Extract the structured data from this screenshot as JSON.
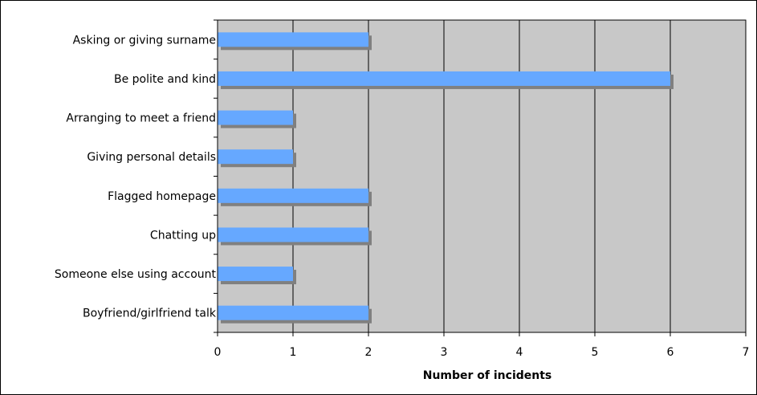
{
  "chart_data": {
    "type": "bar",
    "orientation": "horizontal",
    "categories": [
      "Asking or giving surname",
      "Be polite and kind",
      "Arranging to meet a friend",
      "Giving personal details",
      "Flagged homepage",
      "Chatting up",
      "Someone else using account",
      "Boyfriend/girlfriend talk"
    ],
    "values": [
      2,
      6,
      1,
      1,
      2,
      2,
      1,
      2
    ],
    "title": "",
    "xlabel": "Number of incidents",
    "ylabel": "",
    "xlim": [
      0,
      7
    ],
    "xticks": [
      "0",
      "1",
      "2",
      "3",
      "4",
      "5",
      "6",
      "7"
    ],
    "grid": "vertical",
    "legend": "none",
    "colors": {
      "bar": "#66a8ff",
      "bar_shadow": "#808080",
      "plot_background": "#c8c8c8",
      "gridline": "#000000"
    }
  }
}
